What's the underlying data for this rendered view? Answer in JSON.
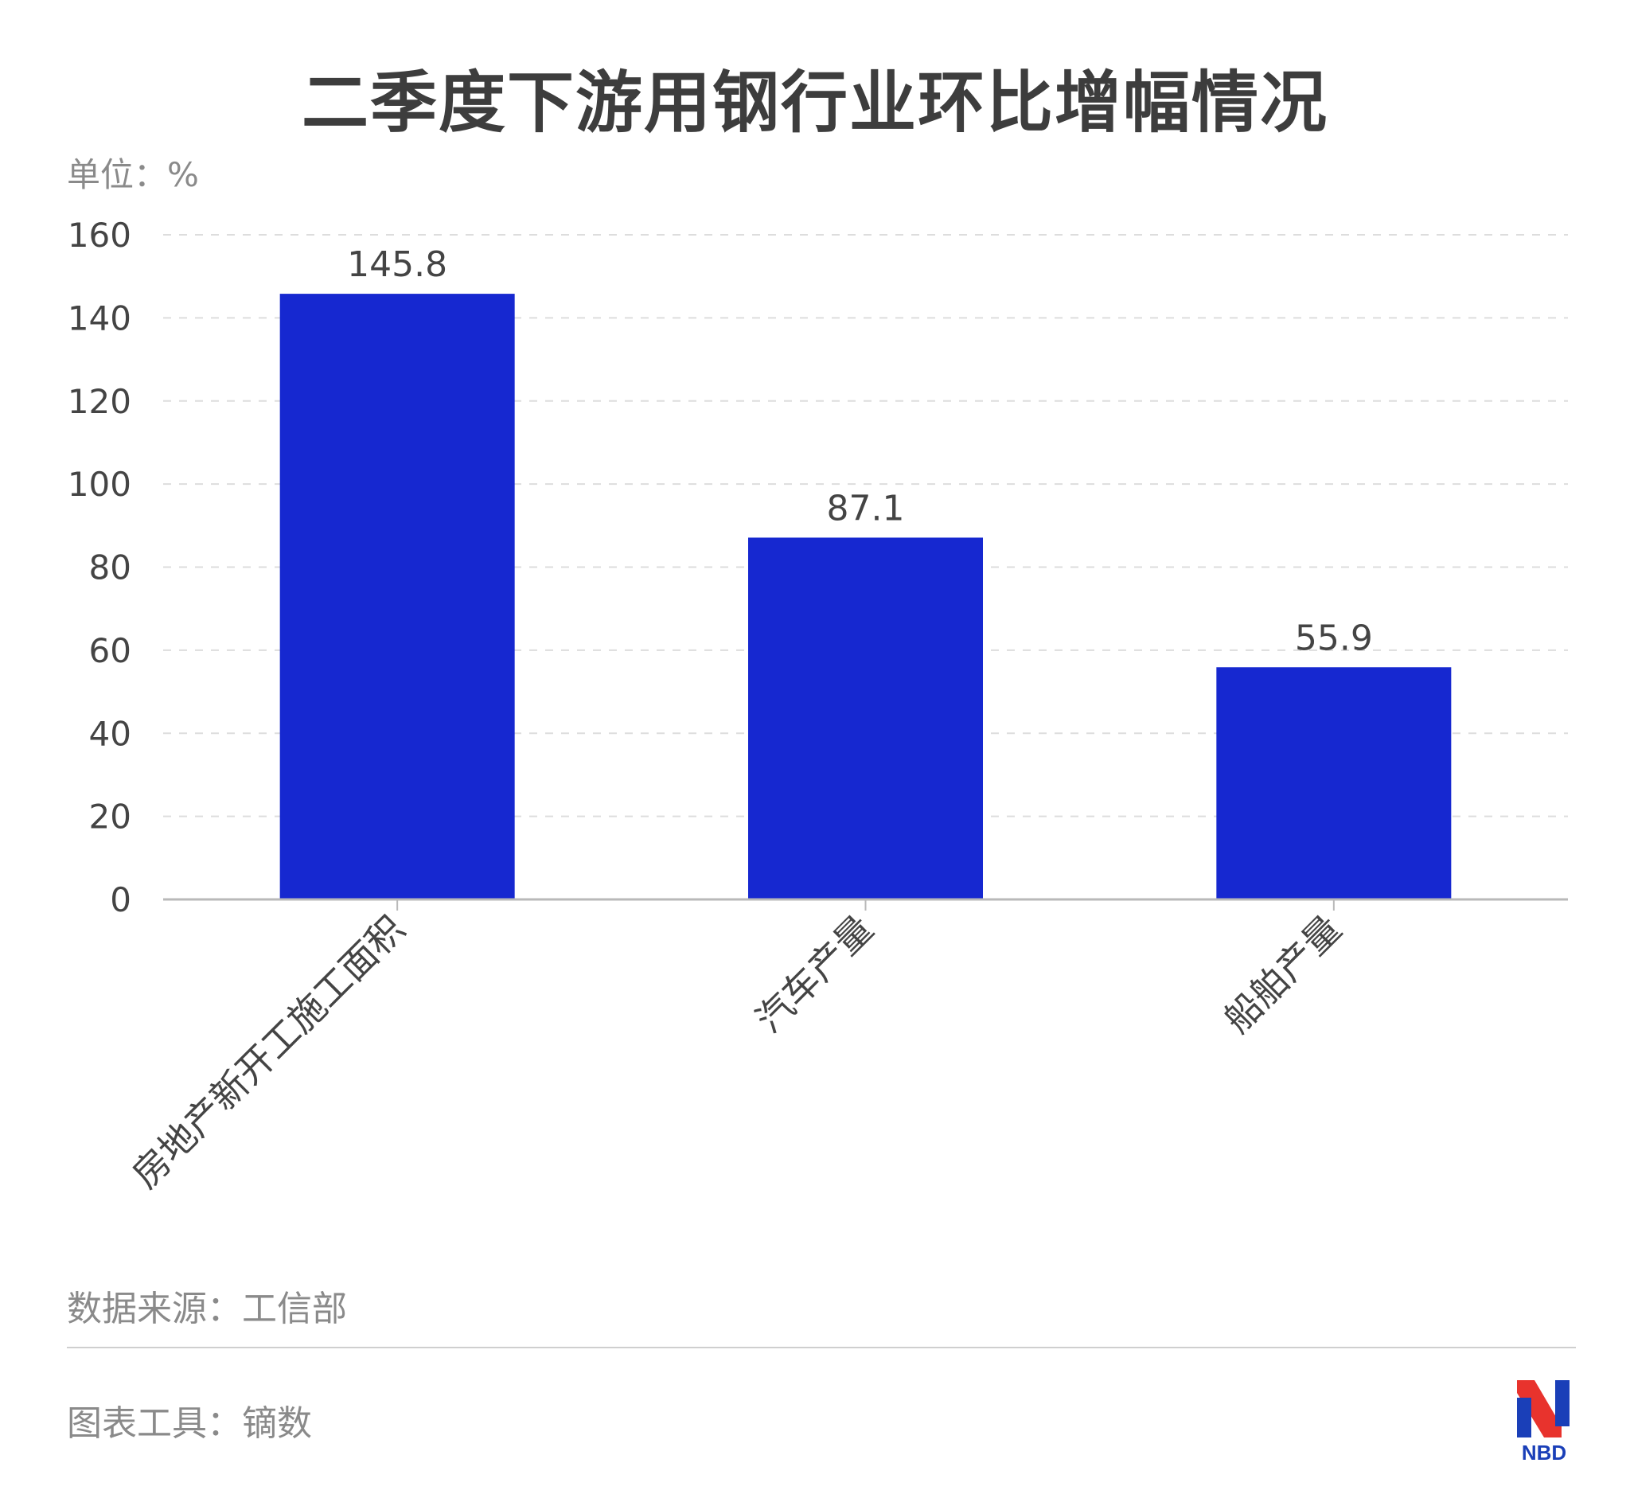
{
  "header": {
    "title": "二季度下游用钢行业环比增幅情况",
    "unit_label": "单位：%"
  },
  "footer": {
    "source": "数据来源：工信部",
    "tool": "图表工具：镝数",
    "logo_text": "NBD"
  },
  "colors": {
    "bar": "#1628d0",
    "grid": "#dddddd",
    "axis": "#b9b9b9",
    "text": "#444444",
    "muted": "#8a8a8a",
    "logo_red": "#e8332d",
    "logo_blue": "#1a3fb8"
  },
  "chart_data": {
    "type": "bar",
    "categories": [
      "房地产新开工施工面积",
      "汽车产量",
      "船舶产量"
    ],
    "values": [
      145.8,
      87.1,
      55.9
    ],
    "value_labels": [
      "145.8",
      "87.1",
      "55.9"
    ],
    "ylim": [
      0,
      160
    ],
    "yticks": [
      0,
      20,
      40,
      60,
      80,
      100,
      120,
      140,
      160
    ],
    "grid": true,
    "legend": "none"
  }
}
